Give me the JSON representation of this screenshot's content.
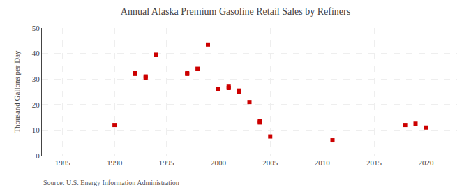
{
  "chart_data": {
    "type": "scatter",
    "title": "Annual Alaska Premium Gasoline Retail Sales by Refiners",
    "ylabel": "Thousand Gallons per Day",
    "annotation": "Source: U.S. Energy Information Administration",
    "color": "#cc0000",
    "marker": "square",
    "grid": true,
    "xlim": [
      1983,
      2023
    ],
    "ylim": [
      0,
      50
    ],
    "xticks": [
      1985,
      1990,
      1995,
      2000,
      2005,
      2010,
      2015,
      2020
    ],
    "yticks": [
      0,
      10,
      20,
      30,
      40,
      50
    ],
    "x": [
      1990,
      1992,
      1992,
      1993,
      1993,
      1994,
      1997,
      1997,
      1998,
      1999,
      2000,
      2001,
      2001,
      2002,
      2002,
      2003,
      2004,
      2004,
      2005,
      2011,
      2018,
      2019,
      2020
    ],
    "values": [
      12,
      32.5,
      32,
      31,
      30.5,
      39.5,
      32.5,
      32,
      34,
      43.5,
      26,
      27,
      26.5,
      25,
      25.5,
      21,
      13,
      13.5,
      7.5,
      6,
      12,
      12.5,
      11
    ]
  }
}
